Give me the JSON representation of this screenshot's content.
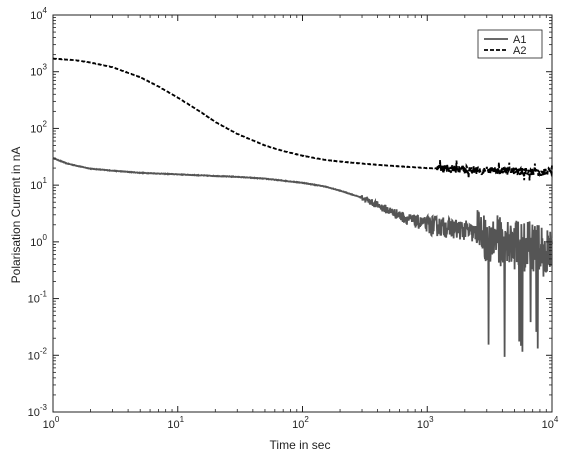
{
  "chart_data": {
    "type": "line",
    "title": "",
    "xlabel": "Time in sec",
    "ylabel": "Polarisation Current in nA",
    "xscale": "log",
    "yscale": "log",
    "xlim": [
      1,
      10000
    ],
    "ylim": [
      0.001,
      10000
    ],
    "x_ticks": [
      {
        "base": "10",
        "exp": "0"
      },
      {
        "base": "10",
        "exp": "1"
      },
      {
        "base": "10",
        "exp": "2"
      },
      {
        "base": "10",
        "exp": "3"
      },
      {
        "base": "10",
        "exp": "4"
      }
    ],
    "y_ticks": [
      {
        "base": "10",
        "exp": "-3"
      },
      {
        "base": "10",
        "exp": "-2"
      },
      {
        "base": "10",
        "exp": "-1"
      },
      {
        "base": "10",
        "exp": "0"
      },
      {
        "base": "10",
        "exp": "1"
      },
      {
        "base": "10",
        "exp": "2"
      },
      {
        "base": "10",
        "exp": "3"
      },
      {
        "base": "10",
        "exp": "4"
      }
    ],
    "grid": false,
    "legend_position": "top-right",
    "series": [
      {
        "name": "A1",
        "style": "solid",
        "color": "#555555",
        "x": [
          1,
          1.3,
          1.7,
          2,
          3,
          5,
          7,
          10,
          20,
          30,
          50,
          70,
          100,
          150,
          200,
          300,
          500,
          700,
          1000,
          2000,
          3000,
          5000,
          7000,
          10000
        ],
        "y": [
          30,
          24,
          21,
          19.5,
          18,
          16.5,
          16,
          15.5,
          14.5,
          14,
          13,
          12,
          11,
          9.5,
          8,
          6,
          3.5,
          2.5,
          2,
          1.6,
          1.2,
          0.9,
          0.8,
          0.6
        ]
      },
      {
        "name": "A2",
        "style": "dashed",
        "color": "#000000",
        "x": [
          1,
          1.5,
          2,
          3,
          5,
          7,
          10,
          15,
          20,
          30,
          50,
          70,
          100,
          150,
          200,
          300,
          500,
          700,
          1000,
          2000,
          3000,
          5000,
          7000,
          10000
        ],
        "y": [
          1700,
          1600,
          1450,
          1200,
          800,
          550,
          350,
          200,
          130,
          80,
          50,
          40,
          33,
          28,
          26,
          24,
          22,
          21,
          20,
          19,
          18,
          17.5,
          17,
          17
        ]
      }
    ]
  }
}
